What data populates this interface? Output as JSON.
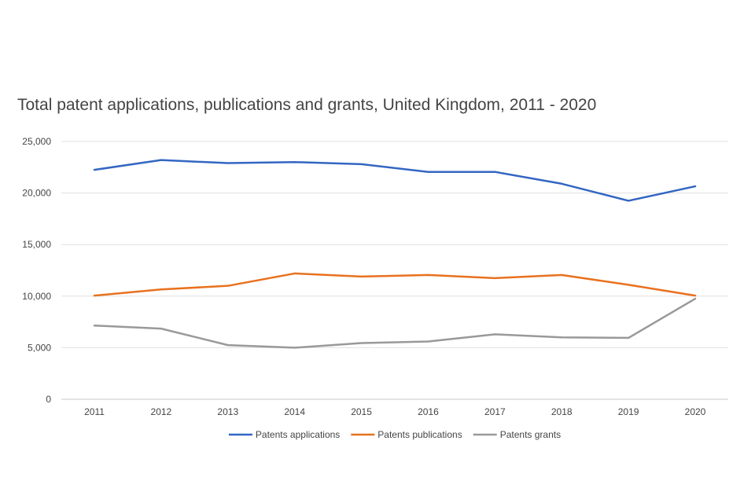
{
  "chart_data": {
    "type": "line",
    "title": "Total patent applications, publications and grants, United Kingdom, 2011 - 2020",
    "xlabel": "",
    "ylabel": "",
    "categories": [
      "2011",
      "2012",
      "2013",
      "2014",
      "2015",
      "2016",
      "2017",
      "2018",
      "2019",
      "2020"
    ],
    "ylim": [
      0,
      25000
    ],
    "yticks": [
      0,
      5000,
      10000,
      15000,
      20000,
      25000
    ],
    "ytick_labels": [
      "0",
      "5,000",
      "10,000",
      "15,000",
      "20,000",
      "25,000"
    ],
    "grid": true,
    "legend_position": "bottom",
    "series": [
      {
        "name": "Patents applications",
        "color": "#3366c2",
        "values": [
          22250,
          23200,
          22900,
          23000,
          22800,
          22050,
          22050,
          20900,
          19250,
          20650
        ]
      },
      {
        "name": "Patents publications",
        "color": "#e8711f",
        "values": [
          10050,
          10650,
          11000,
          12200,
          11900,
          12050,
          11750,
          12050,
          11100,
          10050
        ]
      },
      {
        "name": "Patents grants",
        "color": "#999999",
        "values": [
          7150,
          6850,
          5250,
          5000,
          5450,
          5600,
          6300,
          6000,
          5950,
          9750
        ]
      }
    ]
  }
}
